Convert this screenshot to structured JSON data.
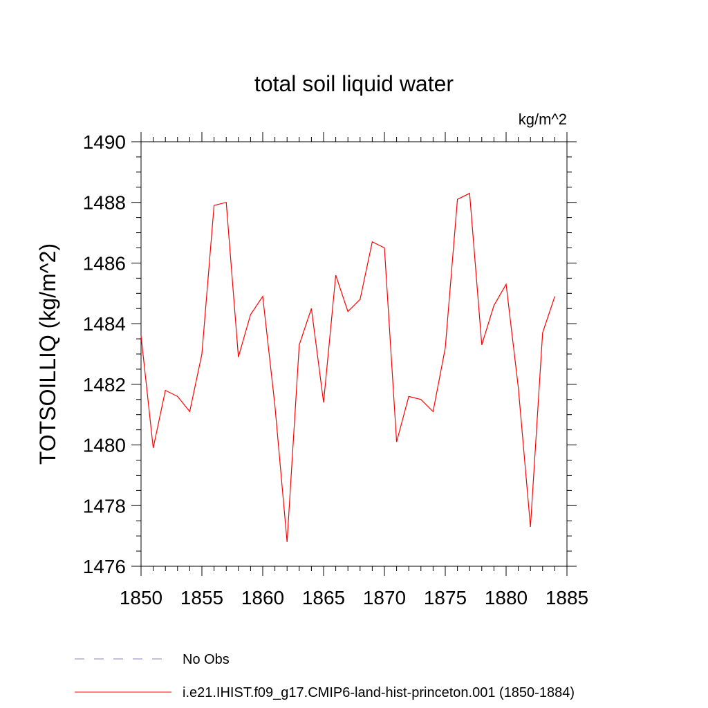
{
  "chart_data": {
    "type": "line",
    "title": "total soil liquid water",
    "units_label": "kg/m^2",
    "ylabel": "TOTSOILLIQ  (kg/m^2)",
    "xlabel": "",
    "xlim": [
      1850,
      1885
    ],
    "ylim": [
      1476,
      1490
    ],
    "x_ticks": [
      1850,
      1855,
      1860,
      1865,
      1870,
      1875,
      1880,
      1885
    ],
    "y_ticks": [
      1476,
      1478,
      1480,
      1482,
      1484,
      1486,
      1488,
      1490
    ],
    "grid": false,
    "legend_position": "bottom",
    "series": [
      {
        "name": "i.e21.IHIST.f09_g17.CMIP6-land-hist-princeton.001 (1850-1884)",
        "color": "#ff0000",
        "x": [
          1850,
          1851,
          1852,
          1853,
          1854,
          1855,
          1856,
          1857,
          1858,
          1859,
          1860,
          1861,
          1862,
          1863,
          1864,
          1865,
          1866,
          1867,
          1868,
          1869,
          1870,
          1871,
          1872,
          1873,
          1874,
          1875,
          1876,
          1877,
          1878,
          1879,
          1880,
          1881,
          1882,
          1883,
          1884
        ],
        "values": [
          1483.6,
          1479.9,
          1481.8,
          1481.6,
          1481.1,
          1483.0,
          1487.9,
          1488.0,
          1482.9,
          1484.3,
          1484.9,
          1481.3,
          1476.8,
          1483.3,
          1484.5,
          1481.4,
          1485.6,
          1484.4,
          1484.8,
          1486.7,
          1486.5,
          1480.1,
          1481.6,
          1481.5,
          1481.1,
          1483.2,
          1488.1,
          1488.3,
          1483.3,
          1484.6,
          1485.3,
          1481.9,
          1477.3,
          1483.7,
          1484.9
        ]
      }
    ],
    "legend": [
      {
        "label": "No Obs",
        "style": "dashed",
        "color": "#8a7fc0"
      },
      {
        "label": "i.e21.IHIST.f09_g17.CMIP6-land-hist-princeton.001 (1850-1884)",
        "style": "solid",
        "color": "#ff0000"
      }
    ]
  }
}
